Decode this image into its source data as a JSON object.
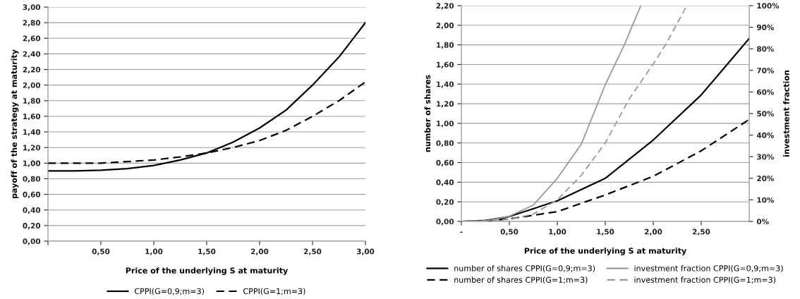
{
  "chart_data": [
    {
      "type": "line",
      "xlabel": "Price of the underlying S at maturity",
      "ylabel": "payoff of the strategy at maturity",
      "x": [
        0,
        0.25,
        0.5,
        0.75,
        1.0,
        1.25,
        1.5,
        1.75,
        2.0,
        2.25,
        2.5,
        2.75,
        3.0
      ],
      "series": [
        {
          "name": "CPPI(G=0,9;m=3)",
          "color": "#000000",
          "line_style": "solid",
          "values": [
            0.9,
            0.9,
            0.91,
            0.93,
            0.97,
            1.04,
            1.13,
            1.27,
            1.45,
            1.68,
            2.0,
            2.36,
            2.8
          ]
        },
        {
          "name": "CPPI(G=1;m=3)",
          "color": "#000000",
          "line_style": "dashed",
          "values": [
            1.0,
            1.0,
            1.0,
            1.02,
            1.04,
            1.08,
            1.13,
            1.2,
            1.29,
            1.42,
            1.6,
            1.8,
            2.04
          ]
        }
      ],
      "xlim": [
        0,
        3
      ],
      "xticks": [
        {
          "value": 0,
          "label": null
        },
        {
          "value": 0.5,
          "label": "0,50"
        },
        {
          "value": 1.0,
          "label": "1,00"
        },
        {
          "value": 1.5,
          "label": "1,50"
        },
        {
          "value": 2.0,
          "label": "2,00"
        },
        {
          "value": 2.5,
          "label": "2,50"
        },
        {
          "value": 3.0,
          "label": "3,00"
        }
      ],
      "ylim": [
        0,
        3
      ],
      "yticks": [
        {
          "value": 0,
          "label": "0,00"
        },
        {
          "value": 0.2,
          "label": "0,20"
        },
        {
          "value": 0.4,
          "label": "0,40"
        },
        {
          "value": 0.6,
          "label": "0,60"
        },
        {
          "value": 0.8,
          "label": "0,80"
        },
        {
          "value": 1.0,
          "label": "1,00"
        },
        {
          "value": 1.2,
          "label": "1,20"
        },
        {
          "value": 1.4,
          "label": "1,40"
        },
        {
          "value": 1.6,
          "label": "1,60"
        },
        {
          "value": 1.8,
          "label": "1,80"
        },
        {
          "value": 2.0,
          "label": "2,00"
        },
        {
          "value": 2.2,
          "label": "2,20"
        },
        {
          "value": 2.4,
          "label": "2,40"
        },
        {
          "value": 2.6,
          "label": "2,60"
        },
        {
          "value": 2.8,
          "label": "2,80"
        },
        {
          "value": 3.0,
          "label": "3,00"
        }
      ],
      "grid": "y",
      "legend": "bottom",
      "marker": "none"
    },
    {
      "type": "line",
      "xlabel": "Price of the underlying S at maturity",
      "ylabel": "number of shares",
      "y2label": "investment fraction",
      "series": [
        {
          "name": "number of shares CPPI(G=0,9;m=3)",
          "color": "#000000",
          "line_style": "solid",
          "x": [
            0,
            0.25,
            0.5,
            1.0,
            1.5,
            2.0,
            2.5,
            3.0
          ],
          "values": [
            0,
            0.01,
            0.05,
            0.21,
            0.44,
            0.83,
            1.29,
            1.865
          ]
        },
        {
          "name": "number of shares CPPI(G=1;m=3)",
          "color": "#000000",
          "line_style": "dashed",
          "x": [
            0,
            0.25,
            0.5,
            1.0,
            1.5,
            2.0,
            2.5,
            3.0
          ],
          "values": [
            0,
            0.005,
            0.026,
            0.1,
            0.27,
            0.46,
            0.72,
            1.04
          ]
        },
        {
          "name": "investment fraction CPPI(G=0,9;m=3)",
          "color": "#999999",
          "line_style": "solid",
          "axis": "y2",
          "x": [
            0,
            0.25,
            0.5,
            0.75,
            1.0,
            1.25,
            1.5,
            1.7,
            1.87
          ],
          "values": [
            0,
            0.3,
            2.4,
            7.6,
            20,
            35.8,
            63.4,
            82,
            100
          ]
        },
        {
          "name": "investment fraction CPPI(G=1;m=3)",
          "color": "#999999",
          "line_style": "dashed",
          "axis": "y2",
          "x": [
            0,
            0.25,
            0.5,
            0.75,
            1.0,
            1.25,
            1.5,
            1.75,
            2.0,
            2.13,
            2.35
          ],
          "values": [
            0,
            0.2,
            1,
            3.4,
            10,
            21.4,
            36.4,
            56.8,
            73,
            82,
            100
          ]
        }
      ],
      "xlim": [
        0,
        3
      ],
      "xticks": [
        {
          "value": 0,
          "label": "-"
        },
        {
          "value": 0.5,
          "label": "0,50"
        },
        {
          "value": 1.0,
          "label": "1,00"
        },
        {
          "value": 1.5,
          "label": "1,50"
        },
        {
          "value": 2.0,
          "label": "2,00"
        },
        {
          "value": 2.5,
          "label": "2,50"
        }
      ],
      "ylim": [
        0,
        2.2
      ],
      "yticks": [
        {
          "value": 0,
          "label": "0,00"
        },
        {
          "value": 0.2,
          "label": "0,20"
        },
        {
          "value": 0.4,
          "label": "0,40"
        },
        {
          "value": 0.6,
          "label": "0,60"
        },
        {
          "value": 0.8,
          "label": "0,80"
        },
        {
          "value": 1.0,
          "label": "1,00"
        },
        {
          "value": 1.2,
          "label": "1,20"
        },
        {
          "value": 1.4,
          "label": "1,40"
        },
        {
          "value": 1.6,
          "label": "1,60"
        },
        {
          "value": 1.8,
          "label": "1,80"
        },
        {
          "value": 2.0,
          "label": "2,00"
        },
        {
          "value": 2.2,
          "label": "2,20"
        }
      ],
      "y2lim": [
        0,
        100
      ],
      "y2ticks": [
        {
          "value": 0,
          "label": "0%"
        },
        {
          "value": 10,
          "label": "10%"
        },
        {
          "value": 20,
          "label": "20%"
        },
        {
          "value": 30,
          "label": "30%"
        },
        {
          "value": 40,
          "label": "40%"
        },
        {
          "value": 50,
          "label": "50%"
        },
        {
          "value": 60,
          "label": "60%"
        },
        {
          "value": 70,
          "label": "70%"
        },
        {
          "value": 80,
          "label": "80%"
        },
        {
          "value": 90,
          "label": "90%"
        },
        {
          "value": 100,
          "label": "100%"
        }
      ],
      "grid": "y",
      "legend": "bottom",
      "marker": "none"
    }
  ]
}
